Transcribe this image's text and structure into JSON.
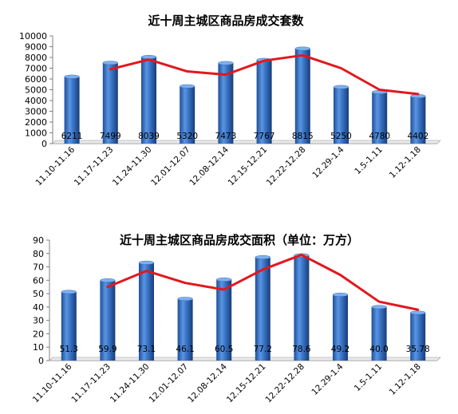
{
  "chart_data": [
    {
      "type": "bar",
      "title": "近十周主城区商品房成交套数",
      "categories": [
        "11.10-11.16",
        "11.17-11.23",
        "11.24-11.30",
        "12.01-12.07",
        "12.08-12.14",
        "12.15-12.21",
        "12.22-12.28",
        "12.29-1.4",
        "1.5-1.11",
        "1.12-1.18"
      ],
      "values": [
        6211,
        7499,
        8039,
        5320,
        7473,
        7767,
        8815,
        5250,
        4780,
        4402
      ],
      "value_labels": [
        "6211",
        "7499",
        "8039",
        "5320",
        "7473",
        "7767",
        "8815",
        "5250",
        "4780",
        "4402"
      ],
      "trend_line": [
        null,
        6900,
        7800,
        6700,
        6400,
        7700,
        8200,
        7000,
        5000,
        4600
      ],
      "ylim": [
        0,
        10000
      ],
      "yticks": [
        0,
        1000,
        2000,
        3000,
        4000,
        5000,
        6000,
        7000,
        8000,
        9000,
        10000
      ],
      "xlabel": "",
      "ylabel": "",
      "grid": false,
      "colors": {
        "bar": "#2f6cc0",
        "bar_light": "#7fb0ee",
        "bar_dark": "#173d78",
        "line": "#e3171d"
      }
    },
    {
      "type": "bar",
      "title": "近十周主城区商品房成交面积（单位：万方）",
      "categories": [
        "11.10-11.16",
        "11.17-11.23",
        "11.24-11.30",
        "12.01-12.07",
        "12.08-12.14",
        "12.15-12.21",
        "12.22-12.28",
        "12.29-1.4",
        "1.5-1.11",
        "1.12-1.18"
      ],
      "values": [
        51.3,
        59.9,
        73.1,
        46.1,
        60.5,
        77.2,
        78.6,
        49.2,
        40.0,
        35.78
      ],
      "value_labels": [
        "51.3",
        "59.9",
        "73.1",
        "46.1",
        "60.5",
        "77.2",
        "78.6",
        "49.2",
        "40.0",
        "35.78"
      ],
      "trend_line": [
        null,
        55,
        67,
        58,
        53,
        68,
        79,
        64,
        44,
        38
      ],
      "ylim": [
        0,
        90
      ],
      "yticks": [
        0,
        10,
        20,
        30,
        40,
        50,
        60,
        70,
        80,
        90
      ],
      "xlabel": "",
      "ylabel": "",
      "grid": false,
      "colors": {
        "bar": "#2f6cc0",
        "bar_light": "#7fb0ee",
        "bar_dark": "#173d78",
        "line": "#e3171d"
      }
    }
  ]
}
